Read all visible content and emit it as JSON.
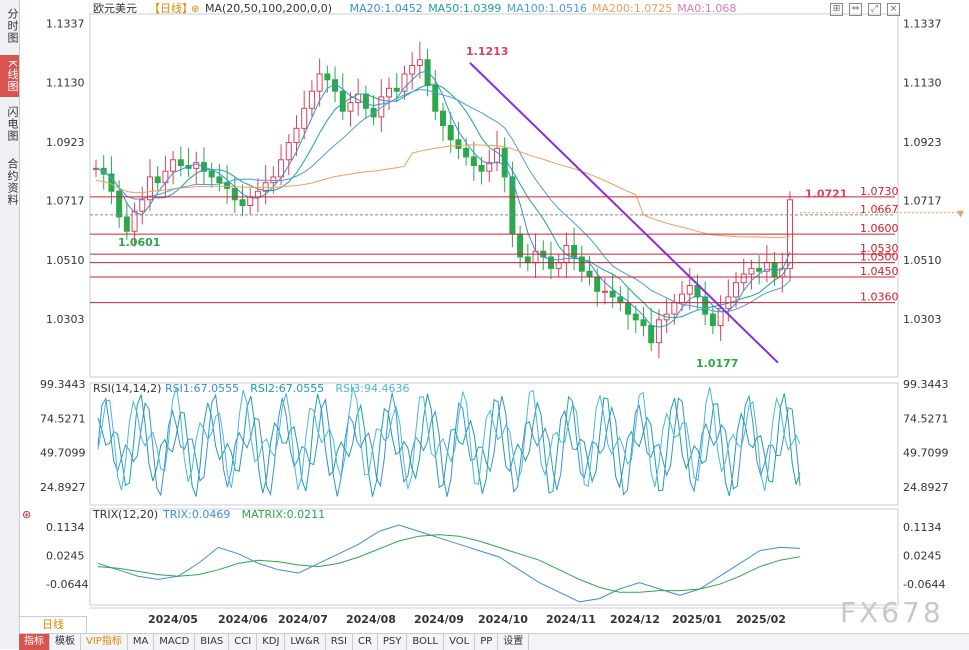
{
  "sidebar": {
    "tabs": [
      {
        "label": "分时图",
        "active": false
      },
      {
        "label": "K线图",
        "active": true
      },
      {
        "label": "闪电图",
        "active": false
      },
      {
        "label": "合约资料",
        "active": false
      }
    ]
  },
  "header": {
    "symbol": "欧元美元",
    "period": "【日线】",
    "settings_icon": "⊕",
    "ma_items": [
      {
        "text": "MA(20,50,100,200,0,0)",
        "color": "#333333"
      },
      {
        "text": "MA20:1.0452",
        "color": "#3b8fd6"
      },
      {
        "text": "MA50:1.0399",
        "color": "#1aa0a8"
      },
      {
        "text": "MA100:1.0516",
        "color": "#4a9fd8"
      },
      {
        "text": "MA200:1.0725",
        "color": "#f0a058"
      },
      {
        "text": "MA0:1.068",
        "color": "#e07ab8"
      }
    ]
  },
  "toolbar_icons": [
    "grid-icon",
    "arrows-icon",
    "expand-icon",
    "close-icon"
  ],
  "watermark": "FX678",
  "period_label": "日线",
  "bottom_tabs": [
    {
      "label": "指标",
      "active": true
    },
    {
      "label": "模板"
    },
    {
      "label": "VIP指标",
      "vip": true
    },
    {
      "label": "MA"
    },
    {
      "label": "MACD"
    },
    {
      "label": "BIAS"
    },
    {
      "label": "CCI"
    },
    {
      "label": "KDJ"
    },
    {
      "label": "LW&R"
    },
    {
      "label": "RSI"
    },
    {
      "label": "CR"
    },
    {
      "label": "PSY"
    },
    {
      "label": "BOLL"
    },
    {
      "label": "VOL"
    },
    {
      "label": "PP"
    },
    {
      "label": "设置"
    }
  ],
  "chart_data": [
    {
      "type": "candlestick",
      "title": "欧元美元【日线】",
      "y_ticks": [
        "1.1337",
        "1.1130",
        "1.0923",
        "1.0717",
        "1.0510",
        "1.0303"
      ],
      "ylim": [
        1.01,
        1.137
      ],
      "x_ticks": [
        "2024/05",
        "2024/06",
        "2024/07",
        "2024/08",
        "2024/09",
        "2024/10",
        "2024/11",
        "2024/12",
        "2025/01",
        "2025/02"
      ],
      "current_price_marker": "1.0717",
      "series_ma": [
        {
          "name": "MA20",
          "value": 1.0452,
          "color": "#3b8fd6"
        },
        {
          "name": "MA50",
          "value": 1.0399,
          "color": "#1aa0a8"
        },
        {
          "name": "MA100",
          "value": 1.0516,
          "color": "#4a9fd8"
        },
        {
          "name": "MA200",
          "value": 1.0725,
          "color": "#f0a058"
        }
      ],
      "horizontal_levels": [
        {
          "label": "1.0730",
          "value": 1.073
        },
        {
          "label": "1.0667",
          "value": 1.0667,
          "dashed": true
        },
        {
          "label": "1.0600",
          "value": 1.06
        },
        {
          "label": "1.0530",
          "value": 1.053
        },
        {
          "label": "1.0500",
          "value": 1.05
        },
        {
          "label": "1.0450",
          "value": 1.045
        },
        {
          "label": "1.0360",
          "value": 1.036
        }
      ],
      "annotations": [
        {
          "text": "1.1213",
          "value": 1.1213,
          "color": "#e0405a"
        },
        {
          "text": "1.0601",
          "value": 1.0601,
          "color": "#2aa84a"
        },
        {
          "text": "1.0177",
          "value": 1.0177,
          "color": "#2aa84a"
        },
        {
          "text": "1.0721",
          "value": 1.0721,
          "color": "#e0405a"
        }
      ],
      "trendline": {
        "from": 1.1213,
        "to": 1.015,
        "color": "#8a2be2"
      },
      "close_path": [
        1.083,
        1.081,
        1.075,
        1.066,
        1.061,
        1.068,
        1.072,
        1.08,
        1.078,
        1.082,
        1.086,
        1.084,
        1.083,
        1.085,
        1.082,
        1.08,
        1.078,
        1.076,
        1.072,
        1.07,
        1.073,
        1.075,
        1.078,
        1.08,
        1.086,
        1.092,
        1.097,
        1.104,
        1.11,
        1.116,
        1.114,
        1.11,
        1.103,
        1.106,
        1.109,
        1.104,
        1.101,
        1.108,
        1.111,
        1.11,
        1.116,
        1.119,
        1.121,
        1.112,
        1.103,
        1.098,
        1.093,
        1.09,
        1.087,
        1.084,
        1.082,
        1.085,
        1.09,
        1.08,
        1.06,
        1.052,
        1.05,
        1.054,
        1.052,
        1.048,
        1.05,
        1.056,
        1.052,
        1.047,
        1.045,
        1.04,
        1.04,
        1.038,
        1.036,
        1.032,
        1.03,
        1.028,
        1.022,
        1.03,
        1.032,
        1.036,
        1.039,
        1.042,
        1.038,
        1.032,
        1.028,
        1.034,
        1.038,
        1.043,
        1.046,
        1.048,
        1.047,
        1.05,
        1.045,
        1.048,
        1.072
      ]
    },
    {
      "type": "line",
      "title": "RSI(14,14,2)",
      "legend": [
        {
          "name": "RSI1:67.0555",
          "color": "#3b8fd6"
        },
        {
          "name": "RSI2:67.0555",
          "color": "#1aa0a8"
        },
        {
          "name": "RSI3:94.4636",
          "color": "#4ab8e0"
        }
      ],
      "y_ticks": [
        "99.3443",
        "74.5271",
        "49.7099",
        "24.8927"
      ],
      "ylim": [
        12,
        100
      ]
    },
    {
      "type": "line",
      "title": "TRIX(12,20)",
      "legend": [
        {
          "name": "TRIX:0.0469",
          "color": "#3b8fd6"
        },
        {
          "name": "MATRIX:0.0211",
          "color": "#2aa84a"
        }
      ],
      "y_ticks": [
        "0.1134",
        "0.0245",
        "-0.0644"
      ],
      "ylim": [
        -0.13,
        0.17
      ],
      "trix": [
        0.0,
        -0.02,
        -0.04,
        -0.05,
        -0.04,
        0.0,
        0.05,
        0.03,
        0.0,
        -0.02,
        -0.03,
        0.0,
        0.03,
        0.06,
        0.1,
        0.12,
        0.1,
        0.08,
        0.06,
        0.04,
        0.02,
        -0.02,
        -0.06,
        -0.09,
        -0.12,
        -0.11,
        -0.08,
        -0.06,
        -0.08,
        -0.1,
        -0.08,
        -0.04,
        0.0,
        0.04,
        0.05,
        0.047
      ],
      "matrix": [
        -0.01,
        -0.015,
        -0.025,
        -0.035,
        -0.04,
        -0.035,
        -0.02,
        0.0,
        0.01,
        0.005,
        -0.005,
        -0.01,
        0.0,
        0.02,
        0.045,
        0.07,
        0.085,
        0.09,
        0.085,
        0.07,
        0.05,
        0.03,
        0.01,
        -0.02,
        -0.05,
        -0.075,
        -0.09,
        -0.09,
        -0.085,
        -0.085,
        -0.08,
        -0.065,
        -0.04,
        -0.01,
        0.01,
        0.021
      ]
    }
  ]
}
